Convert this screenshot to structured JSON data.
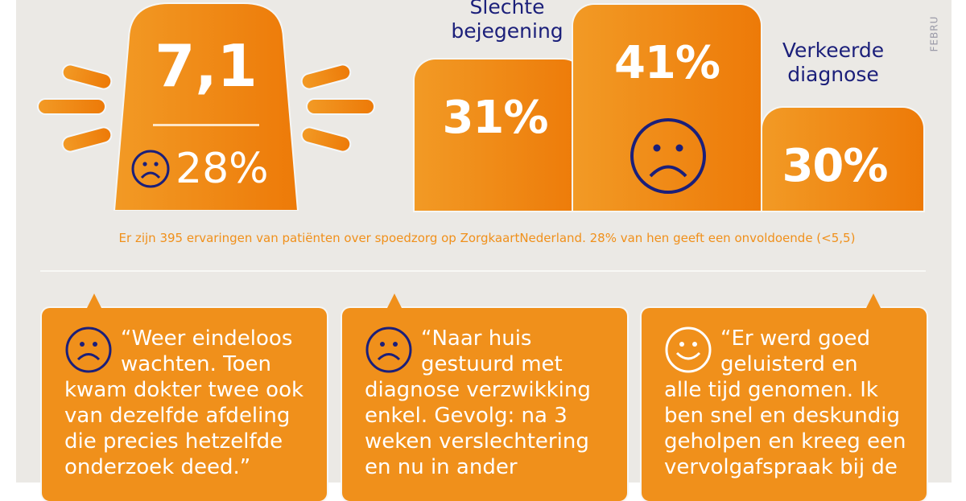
{
  "side_label": "FEBRU",
  "score": {
    "grade": "7,1",
    "unsatisfied_percent": "28%",
    "face_icon": "sad-face"
  },
  "reasons": [
    {
      "label_line1": "Slechte",
      "label_line2": "bejegening",
      "value": "31%",
      "percent": 31
    },
    {
      "label_line1": "",
      "label_line2": "",
      "value": "41%",
      "percent": 41,
      "face_icon": "sad-face"
    },
    {
      "label_line1": "Verkeerde",
      "label_line2": "diagnose",
      "value": "30%",
      "percent": 30
    }
  ],
  "summary": "Er zijn 395 ervaringen van patiënten over spoedzorg op ZorgkaartNederland. 28% van hen geeft een onvoldoende (<5,5)",
  "quotes": [
    {
      "face_icon": "sad-face",
      "first": "“Weer eindeloos wachten. Toen",
      "rest": "kwam dokter twee ook van dezelfde afdeling die precies hetzelfde onderzoek deed.”"
    },
    {
      "face_icon": "sad-face",
      "first": "“Naar huis gestuurd met",
      "rest": "diagnose verzwikking enkel. Gevolg: na 3 weken verslechtering en nu in ander"
    },
    {
      "face_icon": "happy-face",
      "first": "“Er werd goed geluisterd en",
      "rest": "alle tijd genomen. Ik ben snel en deskundig geholpen en kreeg een vervolgafspraak bij de"
    }
  ],
  "colors": {
    "orange": "#f0901b",
    "navy": "#1b1f7a",
    "background": "#ebe9e5"
  }
}
